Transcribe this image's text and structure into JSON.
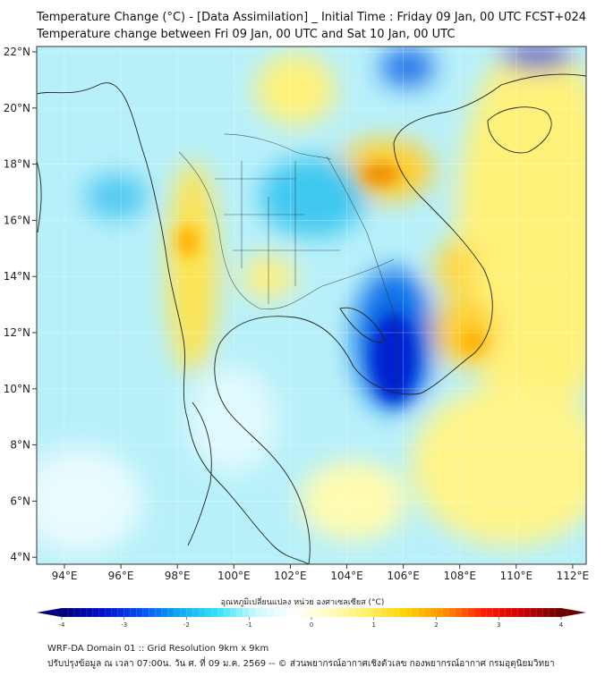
{
  "header": {
    "title": "Temperature Change (°C) - [Data Assimilation] _ Initial Time : Friday 09 Jan, 00 UTC FCST+024",
    "subtitle": "Temperature change between Fri 09 Jan, 00 UTC and Sat 10 Jan, 00 UTC"
  },
  "map": {
    "lat_labels": [
      "22°N",
      "20°N",
      "18°N",
      "16°N",
      "14°N",
      "12°N",
      "10°N",
      "8°N",
      "6°N",
      "4°N"
    ],
    "lat_values": [
      22,
      20,
      18,
      16,
      14,
      12,
      10,
      8,
      6,
      4
    ],
    "lon_labels": [
      "94°E",
      "96°E",
      "98°E",
      "100°E",
      "102°E",
      "104°E",
      "106°E",
      "108°E",
      "110°E",
      "112°E"
    ],
    "lon_values": [
      94,
      96,
      98,
      100,
      102,
      104,
      106,
      108,
      110,
      112
    ]
  },
  "colorbar": {
    "label": "อุณหภูมิเปลี่ยนแปลง หน่วย องศาเซลเซียส (°C)",
    "ticks": [
      "-4",
      "-3",
      "-2",
      "-1",
      "0",
      "1",
      "2",
      "3",
      "4"
    ],
    "min": -4,
    "max": 4,
    "colors": [
      "#00007a",
      "#0010c8",
      "#0050f0",
      "#10a8f0",
      "#30e0f8",
      "#c8f8fc",
      "#ffffff",
      "#fffcc0",
      "#fff060",
      "#ffd000",
      "#ff9000",
      "#ff2000",
      "#d00000",
      "#700000"
    ]
  },
  "footer": {
    "line1": "WRF-DA Domain 01 :: Grid Resolution 9km x 9km",
    "line2": "ปรับปรุงข้อมูล ณ เวลา 07:00น. วัน ศ. ที่ 09 ม.ค. 2569 -- © ส่วนพยากรณ์อากาศเชิงตัวเลข กองพยากรณ์อากาศ กรมอุตุนิยมวิทยา"
  }
}
